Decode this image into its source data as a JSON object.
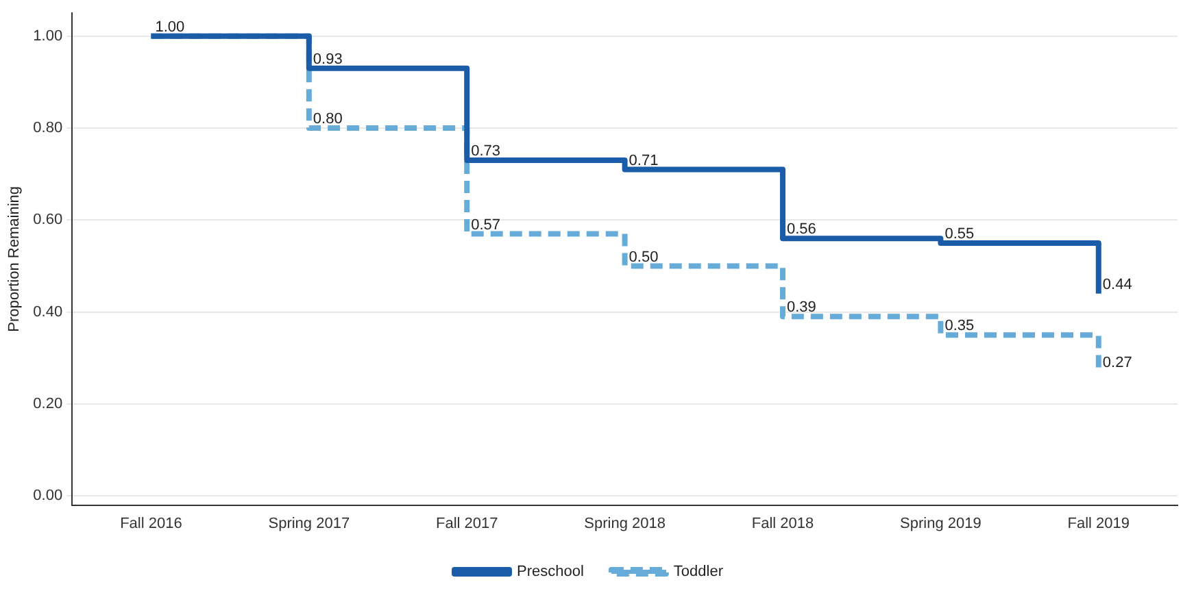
{
  "chart_data": {
    "type": "step",
    "categories": [
      "Fall 2016",
      "Spring 2017",
      "Fall 2017",
      "Spring 2018",
      "Fall 2018",
      "Spring 2019",
      "Fall 2019"
    ],
    "series": [
      {
        "name": "Preschool",
        "color": "#1a5ca8",
        "line_style": "solid",
        "values": [
          1.0,
          0.93,
          0.73,
          0.71,
          0.56,
          0.55,
          0.44
        ],
        "value_labels": [
          "1.00",
          "0.93",
          "0.73",
          "0.71",
          "0.56",
          "0.55",
          "0.44"
        ]
      },
      {
        "name": "Toddler",
        "color": "#67abd9",
        "line_style": "dashed",
        "values": [
          1.0,
          0.8,
          0.57,
          0.5,
          0.39,
          0.35,
          0.27
        ],
        "value_labels": [
          null,
          "0.80",
          "0.57",
          "0.50",
          "0.39",
          "0.35",
          "0.27"
        ]
      }
    ],
    "ylabel": "Proportion Remaining",
    "ylim": [
      -0.02,
      1.05
    ],
    "yticks": [
      {
        "value": 0,
        "label": "0.00"
      },
      {
        "value": 0.2,
        "label": "0.20"
      },
      {
        "value": 0.4,
        "label": "0.40"
      },
      {
        "value": 0.6,
        "label": "0.60"
      },
      {
        "value": 0.8,
        "label": "0.80"
      },
      {
        "value": 1,
        "label": "1.00"
      }
    ],
    "grid": "y",
    "legend": "bottom",
    "marker": "none"
  }
}
